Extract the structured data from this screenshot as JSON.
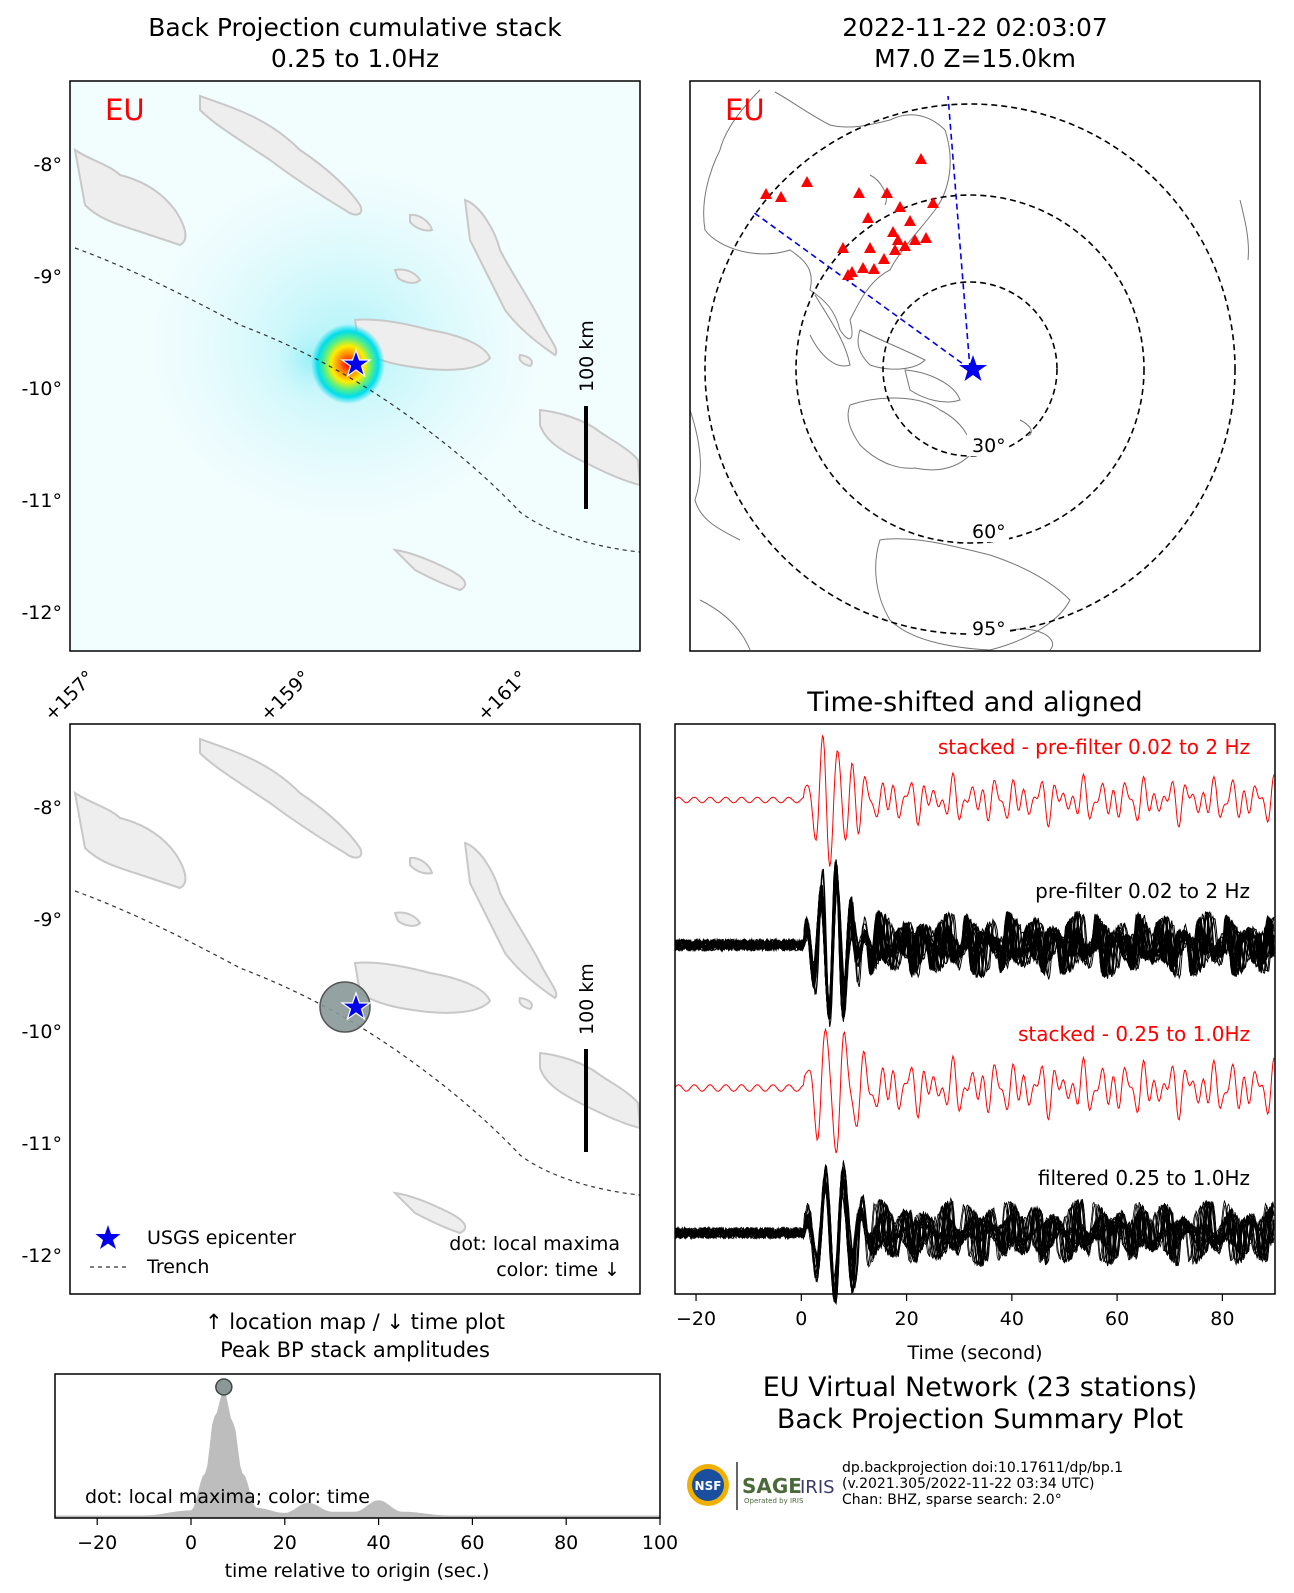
{
  "top_left": {
    "title_line1": "Back Projection cumulative stack",
    "title_line2": "0.25 to 1.0Hz",
    "network_label": "EU",
    "scale_label": "100 km",
    "lat_ticks": [
      "-8°",
      "-9°",
      "-10°",
      "-11°",
      "-12°"
    ],
    "lon_ticks": [
      "+157°",
      "+159°",
      "+161°"
    ]
  },
  "top_right": {
    "title_line1": "2022-11-22 02:03:07",
    "title_line2": "M7.0 Z=15.0km",
    "network_label": "EU",
    "distance_labels": [
      "30°",
      "60°",
      "95°"
    ]
  },
  "mid_left": {
    "scale_label": "100 km",
    "lat_ticks": [
      "-8°",
      "-9°",
      "-10°",
      "-11°",
      "-12°"
    ],
    "legend": {
      "epicenter": "USGS epicenter",
      "trench": "Trench"
    },
    "note_line1": "dot: local maxima",
    "note_line2": "color: time ↓",
    "caption_line1": "↑ location map / ↓ time plot",
    "caption_line2": "Peak BP stack amplitudes"
  },
  "waveforms": {
    "title": "Time-shifted and aligned",
    "labels": {
      "stacked_prefilter": "stacked - pre-filter 0.02 to 2 Hz",
      "prefilter": "pre-filter 0.02 to 2 Hz",
      "stacked_filtered": "stacked - 0.25 to 1.0Hz",
      "filtered": "filtered 0.25 to 1.0Hz"
    },
    "xlabel": "Time (second)"
  },
  "summary": {
    "line1": "EU Virtual Network (23 stations)",
    "line2": "Back Projection Summary Plot",
    "credit_line1": "dp.backprojection doi:10.17611/dp/bp.1",
    "credit_line2": "(v.2021.305/2022-11-22 03:34 UTC)",
    "credit_line3": "Chan: BHZ, sparse search: 2.0°",
    "logo_nsf": "NSF",
    "logo_sage": "SAGE",
    "logo_sage_sub": "Operated by IRIS",
    "logo_iris": "IRIS"
  },
  "colors": {
    "red": "#ff0000",
    "blue": "#0000ee",
    "land": "#eeeeee",
    "coast": "#c8c8c8",
    "peak": "#bdbdbd"
  },
  "chart_data": [
    {
      "type": "heatmap",
      "title": "Back Projection cumulative stack 0.25 to 1.0Hz",
      "xlim": [
        156.9,
        162.0
      ],
      "ylim": [
        -12.33,
        -7.35
      ],
      "epicenter": {
        "lon": 159.45,
        "lat": -9.84
      },
      "peak": {
        "lon": 159.37,
        "lat": -9.81
      }
    },
    {
      "type": "line",
      "title": "Time-shifted and aligned",
      "xlabel": "Time (second)",
      "xlim": [
        -24,
        90
      ],
      "xticks": [
        -20,
        0,
        20,
        40,
        60,
        80
      ],
      "series": [
        {
          "name": "stacked - pre-filter 0.02 to 2 Hz"
        },
        {
          "name": "pre-filter 0.02 to 2 Hz"
        },
        {
          "name": "stacked - 0.25 to 1.0Hz"
        },
        {
          "name": "filtered 0.25 to 1.0Hz"
        }
      ]
    },
    {
      "type": "area",
      "xlabel": "time relative to origin (sec.)",
      "xlim": [
        -29,
        100
      ],
      "xticks": [
        -20,
        0,
        20,
        40,
        60,
        80,
        100
      ],
      "annotation": "dot: local maxima; color: time",
      "peak_time": 7,
      "x": [
        -29,
        -10,
        0,
        3,
        5,
        7,
        9,
        11,
        14,
        20,
        25,
        30,
        35,
        40,
        45,
        55,
        100
      ],
      "y": [
        0.02,
        0.02,
        0.06,
        0.35,
        0.8,
        1.0,
        0.75,
        0.35,
        0.08,
        0.04,
        0.12,
        0.05,
        0.05,
        0.14,
        0.05,
        0.02,
        0.02
      ]
    }
  ]
}
